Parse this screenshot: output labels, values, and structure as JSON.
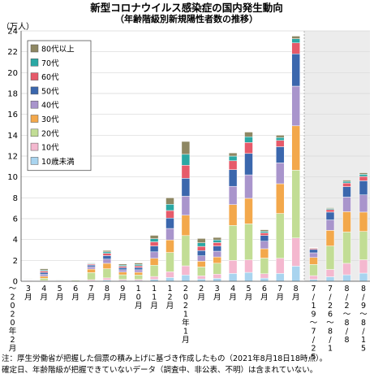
{
  "chart_data": {
    "type": "bar",
    "stacked": true,
    "title": "新型コロナウイルス感染症の国内発生動向",
    "subtitle": "（年齢階級別新規陽性者数の推移）",
    "ylabel": "（万人）",
    "ylim": [
      0,
      24
    ],
    "yticks": [
      0,
      2,
      4,
      6,
      8,
      10,
      12,
      14,
      16,
      18,
      20,
      22,
      24
    ],
    "legend_position": "top-left",
    "shaded_weeks_region": true,
    "series": [
      {
        "name": "10歳未満",
        "color": "#a9d4ef"
      },
      {
        "name": "10代",
        "color": "#f4b8cf"
      },
      {
        "name": "20代",
        "color": "#c2dd95"
      },
      {
        "name": "30代",
        "color": "#f3a84b"
      },
      {
        "name": "40代",
        "color": "#a995cc"
      },
      {
        "name": "50代",
        "color": "#3b67ad"
      },
      {
        "name": "60代",
        "color": "#e65a6a"
      },
      {
        "name": "70代",
        "color": "#2ba8a4"
      },
      {
        "name": "80代以上",
        "color": "#8e8763"
      }
    ],
    "bars": [
      {
        "label": "〜2020年2月",
        "values": [
          0,
          0,
          0.01,
          0.02,
          0.02,
          0.03,
          0.03,
          0.02,
          0.02
        ]
      },
      {
        "label": "3月",
        "values": [
          0.01,
          0.01,
          0.04,
          0.04,
          0.04,
          0.04,
          0.04,
          0.03,
          0.03
        ]
      },
      {
        "label": "4月",
        "values": [
          0.03,
          0.04,
          0.22,
          0.19,
          0.18,
          0.18,
          0.14,
          0.1,
          0.12
        ]
      },
      {
        "label": "5月",
        "values": [
          0.01,
          0.01,
          0.03,
          0.03,
          0.03,
          0.03,
          0.02,
          0.02,
          0.02
        ]
      },
      {
        "label": "6月",
        "values": [
          0.01,
          0.01,
          0.07,
          0.04,
          0.03,
          0.02,
          0.02,
          0.01,
          0.01
        ]
      },
      {
        "label": "7月",
        "values": [
          0.05,
          0.1,
          0.68,
          0.34,
          0.22,
          0.16,
          0.09,
          0.06,
          0.05
        ]
      },
      {
        "label": "8月",
        "values": [
          0.12,
          0.2,
          0.88,
          0.52,
          0.4,
          0.34,
          0.22,
          0.14,
          0.13
        ]
      },
      {
        "label": "9月",
        "values": [
          0.08,
          0.1,
          0.44,
          0.26,
          0.22,
          0.2,
          0.14,
          0.1,
          0.11
        ]
      },
      {
        "label": "10月",
        "values": [
          0.08,
          0.1,
          0.42,
          0.26,
          0.24,
          0.22,
          0.16,
          0.13,
          0.14
        ]
      },
      {
        "label": "11月",
        "values": [
          0.18,
          0.28,
          1.08,
          0.66,
          0.62,
          0.56,
          0.4,
          0.3,
          0.32
        ]
      },
      {
        "label": "12月",
        "values": [
          0.36,
          0.55,
          1.85,
          1.2,
          1.1,
          1.0,
          0.72,
          0.6,
          0.62
        ]
      },
      {
        "label": "2021年1月",
        "values": [
          0.6,
          0.88,
          2.9,
          1.95,
          1.82,
          1.72,
          1.25,
          1.05,
          1.23
        ]
      },
      {
        "label": "2月",
        "values": [
          0.22,
          0.3,
          0.85,
          0.55,
          0.52,
          0.5,
          0.4,
          0.35,
          0.41
        ]
      },
      {
        "label": "3月",
        "values": [
          0.28,
          0.4,
          1.05,
          0.6,
          0.55,
          0.5,
          0.33,
          0.25,
          0.24
        ]
      },
      {
        "label": "4月",
        "values": [
          0.75,
          1.25,
          3.35,
          2.0,
          1.75,
          1.6,
          0.85,
          0.45,
          0.3
        ]
      },
      {
        "label": "5月",
        "values": [
          0.85,
          1.2,
          3.45,
          2.45,
          2.25,
          2.05,
          1.05,
          0.55,
          0.45
        ]
      },
      {
        "label": "6月",
        "values": [
          0.3,
          0.42,
          1.5,
          0.9,
          0.72,
          0.55,
          0.25,
          0.15,
          0.15
        ]
      },
      {
        "label": "7月",
        "values": [
          0.75,
          1.45,
          4.3,
          2.85,
          2.0,
          1.55,
          0.6,
          0.28,
          0.22
        ]
      },
      {
        "label": "8月",
        "values": [
          1.45,
          2.7,
          6.5,
          4.25,
          3.8,
          3.1,
          1.05,
          0.4,
          0.25
        ]
      },
      {
        "label": "7/19〜7/25",
        "values": [
          0.18,
          0.36,
          1.07,
          0.67,
          0.45,
          0.32,
          0.11,
          0.05,
          0.04
        ]
      },
      {
        "label": "7/26〜8/1",
        "values": [
          0.43,
          0.7,
          2.25,
          1.5,
          1.0,
          0.75,
          0.24,
          0.1,
          0.08
        ]
      },
      {
        "label": "8/2〜8/8",
        "values": [
          0.62,
          1.1,
          3.0,
          1.95,
          1.4,
          1.0,
          0.35,
          0.16,
          0.12
        ]
      },
      {
        "label": "8/9〜8/15",
        "values": [
          0.78,
          1.28,
          2.72,
          1.85,
          1.65,
          1.35,
          0.42,
          0.2,
          0.15
        ]
      }
    ],
    "note_lines": [
      "注：厚生労働省が把握した個票の積み上げに基づき作成したもの（2021年8月18日18時点）。",
      "確定日、年齢階級が把握できていないデータ（調査中、非公表、不明）は含まれていない。"
    ]
  }
}
